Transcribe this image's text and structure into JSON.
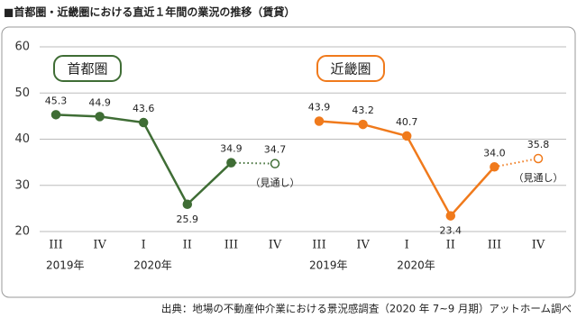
{
  "chart_data": {
    "type": "line",
    "title": "■首都圏・近畿圏における直近１年間の業況の推移（賃貸）",
    "ylim": [
      20,
      60
    ],
    "yticks": [
      20,
      30,
      40,
      50,
      60
    ],
    "grid": true,
    "categories": [
      "III",
      "IV",
      "I",
      "II",
      "III",
      "IV"
    ],
    "year_labels": [
      "2019年",
      "2020年"
    ],
    "series": [
      {
        "name": "首都圏",
        "color": "#3f6d35",
        "values": [
          45.3,
          44.9,
          43.6,
          25.9,
          34.9,
          34.7
        ],
        "value_labels": [
          "45.3",
          "44.9",
          "43.6",
          "25.9",
          "34.9",
          "34.7"
        ],
        "forecast_label": "（見通し）"
      },
      {
        "name": "近畿圏",
        "color": "#f07a1c",
        "values": [
          43.9,
          43.2,
          40.7,
          23.4,
          34.0,
          35.8
        ],
        "value_labels": [
          "43.9",
          "43.2",
          "40.7",
          "23.4",
          "34.0",
          "35.8"
        ],
        "forecast_label": "（見通し）"
      }
    ],
    "source": "出典：地場の不動産仲介業における景況感調査（2020 年 7~9 月期）アットホーム調べ"
  }
}
